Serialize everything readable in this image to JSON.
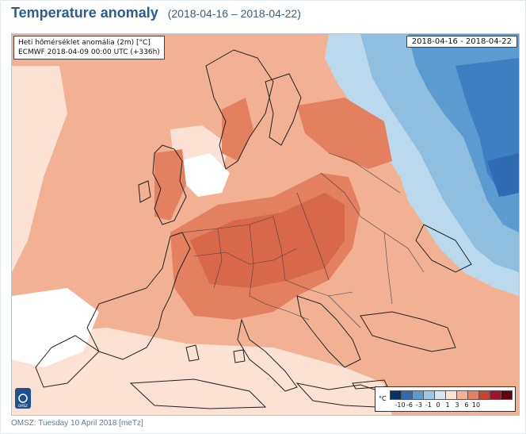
{
  "header": {
    "title": "Temperature anomaly",
    "period": "(2018-04-16 – 2018-04-22)"
  },
  "map": {
    "info_line1": "Heti hőmérséklet anomália (2m) [°C]",
    "info_line2": "ECMWF 2018-04-09 00:00 UTC (+336h)",
    "date_range": "2018-04-16 - 2018-04-22",
    "logo_text": "OMSZ",
    "legend": {
      "unit": "°C",
      "labels": [
        "-10",
        "-6",
        "-3",
        "-1",
        "0",
        "1",
        "3",
        "6",
        "10"
      ],
      "colors": [
        "#08306b",
        "#2f6ab2",
        "#5b9bd0",
        "#9cc8e6",
        "#d3e8f3",
        "#fbe2d4",
        "#f2b192",
        "#e3805f",
        "#c8432f",
        "#a0132a",
        "#67000d"
      ]
    }
  },
  "footer": {
    "text": "OMSZ: Tuesday 10 April 2018  [meTz]"
  }
}
